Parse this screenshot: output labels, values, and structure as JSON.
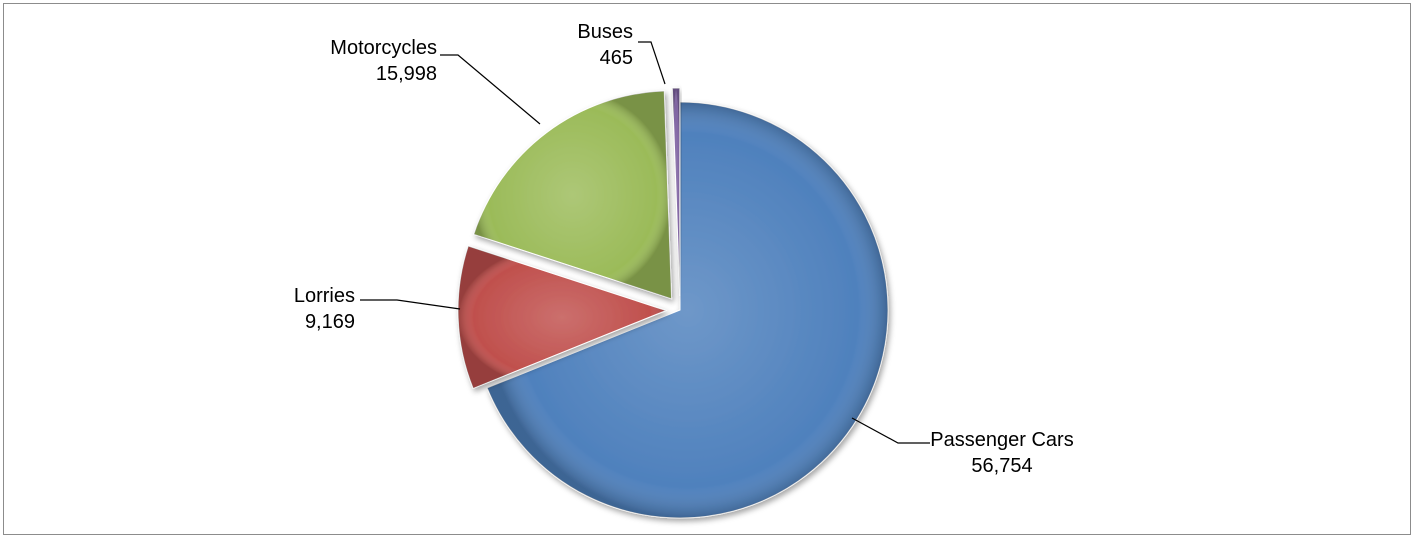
{
  "chart_data": {
    "type": "pie",
    "title": "",
    "slices": [
      {
        "name": "Passenger Cars",
        "value": 56754,
        "value_label": "56,754",
        "color": "#4F81BD",
        "exploded": false
      },
      {
        "name": "Lorries",
        "value": 9169,
        "value_label": "9,169",
        "color": "#C0504D",
        "exploded": true
      },
      {
        "name": "Motorcycles",
        "value": 15998,
        "value_label": "15,998",
        "color": "#9BBB59",
        "exploded": true
      },
      {
        "name": "Buses",
        "value": 465,
        "value_label": "465",
        "color": "#8064A2",
        "exploded": true
      }
    ],
    "legend": "none",
    "data_labels": "category name and value, with leader lines"
  }
}
